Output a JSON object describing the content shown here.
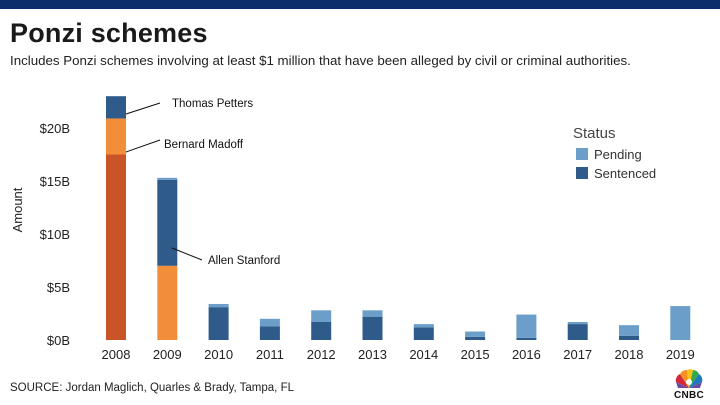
{
  "header": {
    "title": "Ponzi schemes",
    "subtitle": "Includes Ponzi schemes involving at least $1 million that have been alleged by civil or criminal authorities."
  },
  "footer": {
    "source": "SOURCE: Jordan Maglich, Quarles & Brady, Tampa, FL",
    "logo_text": "CNBC",
    "logo_icon": "nbc-peacock-icon"
  },
  "chart_data": {
    "type": "bar",
    "stacked": true,
    "title": "",
    "xlabel": "",
    "ylabel": "Amount",
    "ylim": [
      0,
      25
    ],
    "yticks": [
      {
        "value": 0,
        "label": "$0B"
      },
      {
        "value": 5,
        "label": "$5B"
      },
      {
        "value": 10,
        "label": "$10B"
      },
      {
        "value": 15,
        "label": "$15B"
      },
      {
        "value": 20,
        "label": "$20B"
      }
    ],
    "grid": false,
    "categories": [
      "2008",
      "2009",
      "2010",
      "2011",
      "2012",
      "2013",
      "2014",
      "2015",
      "2016",
      "2017",
      "2018",
      "2019"
    ],
    "legend": {
      "title": "Status",
      "position": "top-right",
      "items": [
        {
          "name": "Pending",
          "color": "#6b9ec9"
        },
        {
          "name": "Sentenced",
          "color": "#2e5b8a"
        }
      ]
    },
    "segments": [
      {
        "category": "2008",
        "start": 0,
        "end": 17.5,
        "color": "#c95428",
        "label": "Bernard Madoff"
      },
      {
        "category": "2008",
        "start": 17.5,
        "end": 20.9,
        "color": "#f28e3a",
        "label": "Thomas Petters"
      },
      {
        "category": "2008",
        "start": 20.9,
        "end": 23.0,
        "color": "#2e5b8a",
        "label": ""
      },
      {
        "category": "2009",
        "start": 0,
        "end": 7.0,
        "color": "#f28e3a",
        "label": "Allen Stanford"
      },
      {
        "category": "2009",
        "start": 7.0,
        "end": 15.1,
        "color": "#2e5b8a",
        "label": ""
      },
      {
        "category": "2009",
        "start": 15.1,
        "end": 15.3,
        "color": "#6b9ec9",
        "label": ""
      },
      {
        "category": "2010",
        "start": 0,
        "end": 3.1,
        "color": "#2e5b8a",
        "label": ""
      },
      {
        "category": "2010",
        "start": 3.1,
        "end": 3.4,
        "color": "#6b9ec9",
        "label": ""
      },
      {
        "category": "2011",
        "start": 0,
        "end": 1.3,
        "color": "#2e5b8a",
        "label": ""
      },
      {
        "category": "2011",
        "start": 1.3,
        "end": 2.0,
        "color": "#6b9ec9",
        "label": ""
      },
      {
        "category": "2012",
        "start": 0,
        "end": 1.7,
        "color": "#2e5b8a",
        "label": ""
      },
      {
        "category": "2012",
        "start": 1.7,
        "end": 2.8,
        "color": "#6b9ec9",
        "label": ""
      },
      {
        "category": "2013",
        "start": 0,
        "end": 2.2,
        "color": "#2e5b8a",
        "label": ""
      },
      {
        "category": "2013",
        "start": 2.2,
        "end": 2.8,
        "color": "#6b9ec9",
        "label": ""
      },
      {
        "category": "2014",
        "start": 0,
        "end": 1.2,
        "color": "#2e5b8a",
        "label": ""
      },
      {
        "category": "2014",
        "start": 1.2,
        "end": 1.5,
        "color": "#6b9ec9",
        "label": ""
      },
      {
        "category": "2015",
        "start": 0,
        "end": 0.3,
        "color": "#2e5b8a",
        "label": ""
      },
      {
        "category": "2015",
        "start": 0.3,
        "end": 0.8,
        "color": "#6b9ec9",
        "label": ""
      },
      {
        "category": "2016",
        "start": 0,
        "end": 0.2,
        "color": "#2e5b8a",
        "label": ""
      },
      {
        "category": "2016",
        "start": 0.2,
        "end": 2.4,
        "color": "#6b9ec9",
        "label": ""
      },
      {
        "category": "2017",
        "start": 0,
        "end": 1.5,
        "color": "#2e5b8a",
        "label": ""
      },
      {
        "category": "2017",
        "start": 1.5,
        "end": 1.7,
        "color": "#6b9ec9",
        "label": ""
      },
      {
        "category": "2018",
        "start": 0,
        "end": 0.4,
        "color": "#2e5b8a",
        "label": ""
      },
      {
        "category": "2018",
        "start": 0.4,
        "end": 1.4,
        "color": "#6b9ec9",
        "label": ""
      },
      {
        "category": "2019",
        "start": 0,
        "end": 3.2,
        "color": "#6b9ec9",
        "label": ""
      }
    ]
  }
}
